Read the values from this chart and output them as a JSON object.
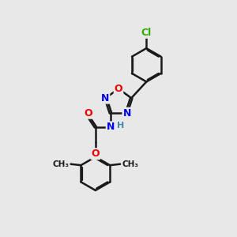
{
  "background_color": "#e8e8e8",
  "bond_color": "#1a1a1a",
  "bond_width": 1.8,
  "atom_colors": {
    "N": "#0000ee",
    "O": "#ee0000",
    "Cl": "#33aa00",
    "C": "#1a1a1a",
    "H": "#4488aa"
  },
  "font_size_atom": 9,
  "font_size_small": 8
}
